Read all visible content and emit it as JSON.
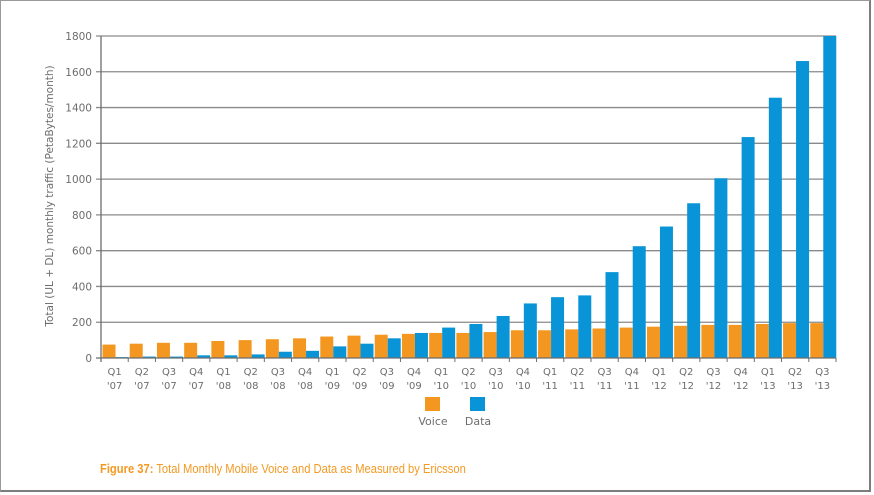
{
  "colors": {
    "voice": "#f39720",
    "data": "#0894d6",
    "grid": "#8a8a8a",
    "axis": "#6d6d6d",
    "caption": "#f39a23"
  },
  "caption": {
    "label": "Figure 37:",
    "text": " Total Monthly Mobile Voice and Data as Measured by Ericsson"
  },
  "chart_data": {
    "type": "bar",
    "title": "Total Monthly Mobile Voice and Data as Measured by Ericsson",
    "xlabel": "",
    "ylabel": "Total (UL + DL) monthly traffic (PetaBytes/month)",
    "ylim": [
      0,
      1800
    ],
    "yticks": [
      0,
      200,
      400,
      600,
      800,
      1000,
      1200,
      1400,
      1600,
      1800
    ],
    "grid": true,
    "legend_position": "bottom-center",
    "categories": [
      [
        "Q1",
        "'07"
      ],
      [
        "Q2",
        "'07"
      ],
      [
        "Q3",
        "'07"
      ],
      [
        "Q4",
        "'07"
      ],
      [
        "Q1",
        "'08"
      ],
      [
        "Q2",
        "'08"
      ],
      [
        "Q3",
        "'08"
      ],
      [
        "Q4",
        "'08"
      ],
      [
        "Q1",
        "'09"
      ],
      [
        "Q2",
        "'09"
      ],
      [
        "Q3",
        "'09"
      ],
      [
        "Q4",
        "'09"
      ],
      [
        "Q1",
        "'10"
      ],
      [
        "Q2",
        "'10"
      ],
      [
        "Q3",
        "'10"
      ],
      [
        "Q4",
        "'10"
      ],
      [
        "Q1",
        "'11"
      ],
      [
        "Q2",
        "'11"
      ],
      [
        "Q3",
        "'11"
      ],
      [
        "Q4",
        "'11"
      ],
      [
        "Q1",
        "'12"
      ],
      [
        "Q2",
        "'12"
      ],
      [
        "Q3",
        "'12"
      ],
      [
        "Q4",
        "'12"
      ],
      [
        "Q1",
        "'13"
      ],
      [
        "Q2",
        "'13"
      ],
      [
        "Q3",
        "'13"
      ]
    ],
    "series": [
      {
        "name": "Voice",
        "values": [
          75,
          80,
          85,
          85,
          95,
          100,
          105,
          110,
          120,
          125,
          130,
          135,
          140,
          140,
          145,
          155,
          155,
          160,
          165,
          170,
          175,
          180,
          185,
          185,
          190,
          195,
          195
        ]
      },
      {
        "name": "Data",
        "values": [
          5,
          8,
          8,
          15,
          15,
          20,
          35,
          40,
          65,
          80,
          110,
          140,
          170,
          190,
          235,
          305,
          340,
          350,
          480,
          625,
          735,
          865,
          1005,
          1235,
          1455,
          1660,
          1800
        ]
      }
    ]
  }
}
